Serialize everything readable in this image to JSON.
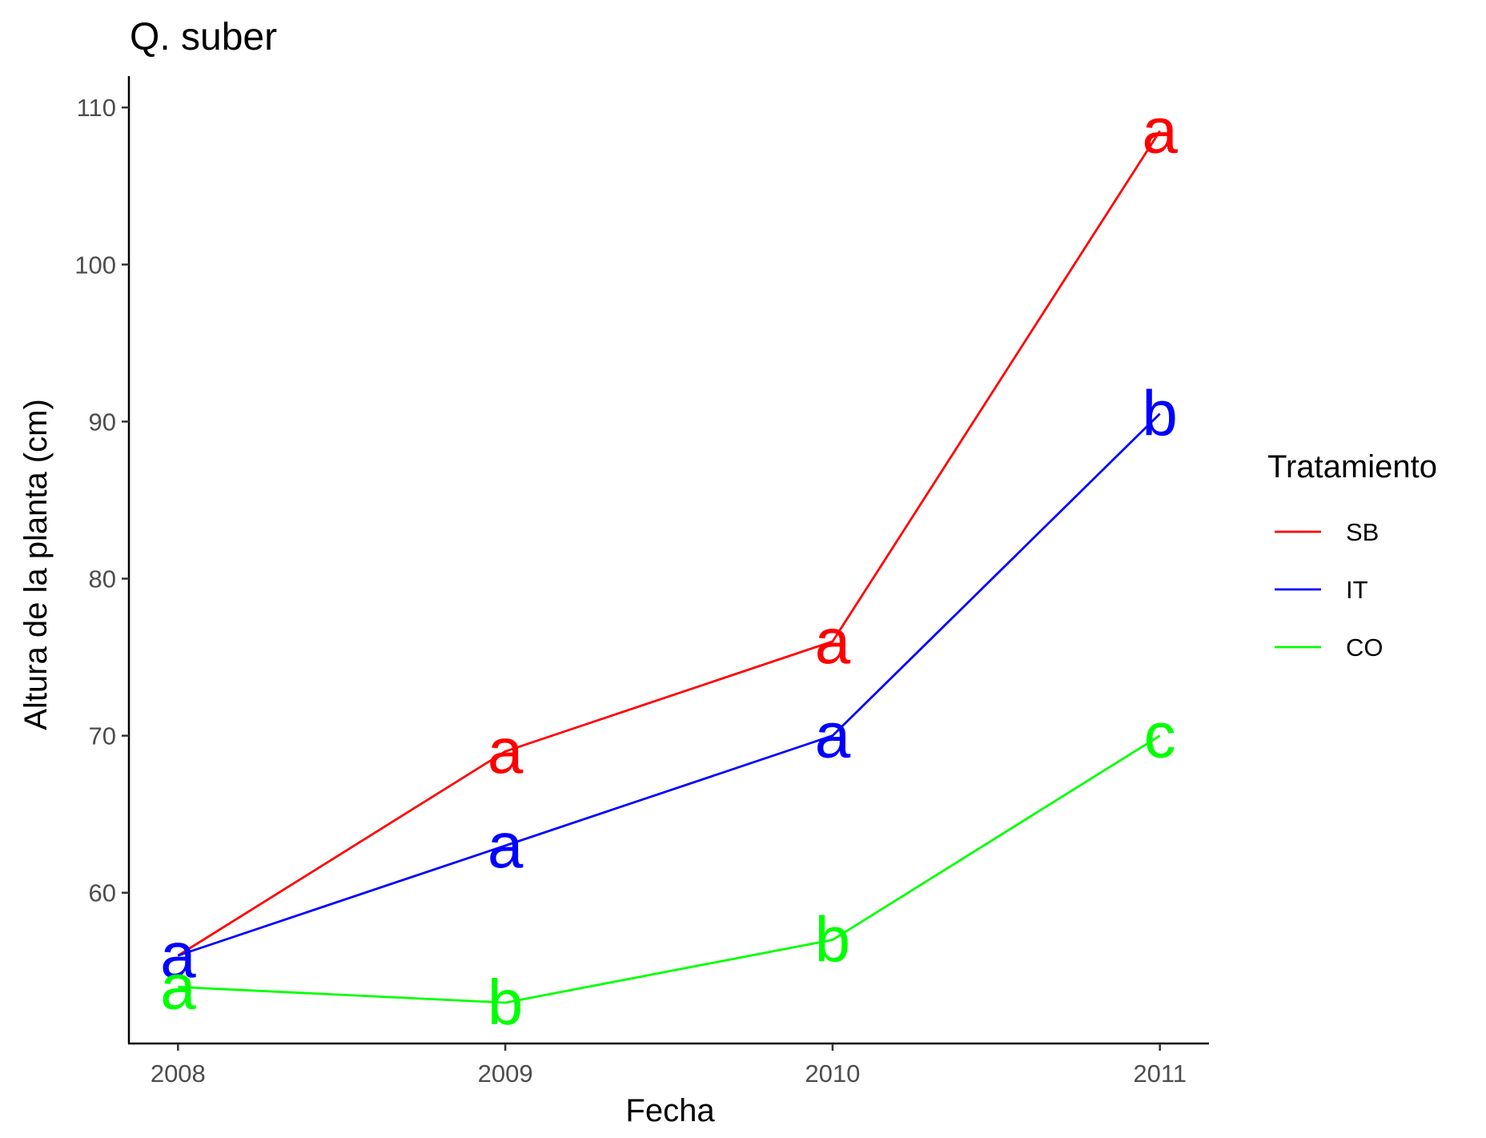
{
  "chart_data": {
    "type": "line",
    "title": "Q. suber",
    "xlabel": "Fecha",
    "ylabel": "Altura de la planta (cm)",
    "x": [
      2008,
      2009,
      2010,
      2011
    ],
    "x_tick_labels": [
      "2008",
      "2009",
      "2010",
      "2011"
    ],
    "xlim": [
      2007.85,
      2011.15
    ],
    "ylim": [
      50.4,
      112
    ],
    "y_ticks": [
      60,
      70,
      80,
      90,
      100,
      110
    ],
    "grid": false,
    "legend": {
      "title": "Tratamiento",
      "position": "right"
    },
    "series": [
      {
        "name": "SB",
        "color": "#ff0000",
        "values": [
          56,
          69,
          76,
          108.5
        ],
        "labels": [
          "",
          "a",
          "a",
          "a"
        ]
      },
      {
        "name": "IT",
        "color": "#0000ff",
        "values": [
          56,
          63,
          70,
          90.5
        ],
        "labels": [
          "a",
          "a",
          "a",
          "b"
        ]
      },
      {
        "name": "CO",
        "color": "#00ff00",
        "values": [
          54,
          53,
          57,
          70
        ],
        "labels": [
          "a",
          "b",
          "b",
          "c"
        ]
      }
    ]
  }
}
